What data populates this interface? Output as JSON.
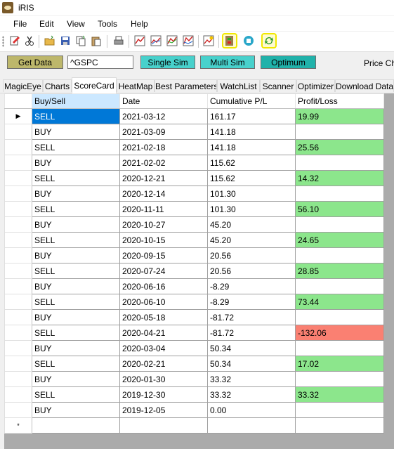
{
  "app": {
    "title": "iRIS"
  },
  "menu": {
    "items": [
      "File",
      "Edit",
      "View",
      "Tools",
      "Help"
    ]
  },
  "toolbar": {
    "icons": [
      "edit-doc-icon",
      "cut-icon",
      "open-folder-icon",
      "save-icon",
      "copy-icon",
      "paste-icon",
      "print-icon",
      "chart-1-icon",
      "chart-2-icon",
      "chart-3-icon",
      "chart-4-icon",
      "chart-star-icon",
      "exit-icon",
      "stop-icon",
      "refresh-icon"
    ]
  },
  "controls": {
    "get_data": "Get Data",
    "symbol_value": "^GSPC",
    "single_sim": "Single Sim",
    "multi_sim": "Multi Sim",
    "optimum": "Optimum",
    "price_chart_label": "Price Cha"
  },
  "tabs": [
    "MagicEye",
    "Charts",
    "ScoreCard",
    "HeatMap",
    "Best Parameters",
    "WatchList",
    "Scanner",
    "Optimizer",
    "Download Data"
  ],
  "active_tab": "ScoreCard",
  "grid": {
    "columns": [
      "Buy/Sell",
      "Date",
      "Cumulative P/L",
      "Profit/Loss"
    ],
    "current_row_marker": "▶",
    "new_row_marker": "*",
    "rows": [
      {
        "action": "SELL",
        "date": "2021-03-12",
        "cum": "161.17",
        "pl": "19.99",
        "status": "profit"
      },
      {
        "action": "BUY",
        "date": "2021-03-09",
        "cum": "141.18",
        "pl": "",
        "status": "none"
      },
      {
        "action": "SELL",
        "date": "2021-02-18",
        "cum": "141.18",
        "pl": "25.56",
        "status": "profit"
      },
      {
        "action": "BUY",
        "date": "2021-02-02",
        "cum": "115.62",
        "pl": "",
        "status": "none"
      },
      {
        "action": "SELL",
        "date": "2020-12-21",
        "cum": "115.62",
        "pl": "14.32",
        "status": "profit"
      },
      {
        "action": "BUY",
        "date": "2020-12-14",
        "cum": "101.30",
        "pl": "",
        "status": "none"
      },
      {
        "action": "SELL",
        "date": "2020-11-11",
        "cum": "101.30",
        "pl": "56.10",
        "status": "profit"
      },
      {
        "action": "BUY",
        "date": "2020-10-27",
        "cum": "45.20",
        "pl": "",
        "status": "none"
      },
      {
        "action": "SELL",
        "date": "2020-10-15",
        "cum": "45.20",
        "pl": "24.65",
        "status": "profit"
      },
      {
        "action": "BUY",
        "date": "2020-09-15",
        "cum": "20.56",
        "pl": "",
        "status": "none"
      },
      {
        "action": "SELL",
        "date": "2020-07-24",
        "cum": "20.56",
        "pl": "28.85",
        "status": "profit"
      },
      {
        "action": "BUY",
        "date": "2020-06-16",
        "cum": "-8.29",
        "pl": "",
        "status": "none"
      },
      {
        "action": "SELL",
        "date": "2020-06-10",
        "cum": "-8.29",
        "pl": "73.44",
        "status": "profit"
      },
      {
        "action": "BUY",
        "date": "2020-05-18",
        "cum": "-81.72",
        "pl": "",
        "status": "none"
      },
      {
        "action": "SELL",
        "date": "2020-04-21",
        "cum": "-81.72",
        "pl": "-132.06",
        "status": "loss"
      },
      {
        "action": "BUY",
        "date": "2020-03-04",
        "cum": "50.34",
        "pl": "",
        "status": "none"
      },
      {
        "action": "SELL",
        "date": "2020-02-21",
        "cum": "50.34",
        "pl": "17.02",
        "status": "profit"
      },
      {
        "action": "BUY",
        "date": "2020-01-30",
        "cum": "33.32",
        "pl": "",
        "status": "none"
      },
      {
        "action": "SELL",
        "date": "2019-12-30",
        "cum": "33.32",
        "pl": "33.32",
        "status": "profit"
      },
      {
        "action": "BUY",
        "date": "2019-12-05",
        "cum": "0.00",
        "pl": "",
        "status": "none"
      }
    ]
  },
  "colors": {
    "profit": "#8ce68c",
    "loss": "#fa8072",
    "get_data": "#bdb76b",
    "sim_buttons": "#48d1cc",
    "optimum": "#20b2aa",
    "selection": "#0078d7",
    "highlight": "#f1e800"
  }
}
